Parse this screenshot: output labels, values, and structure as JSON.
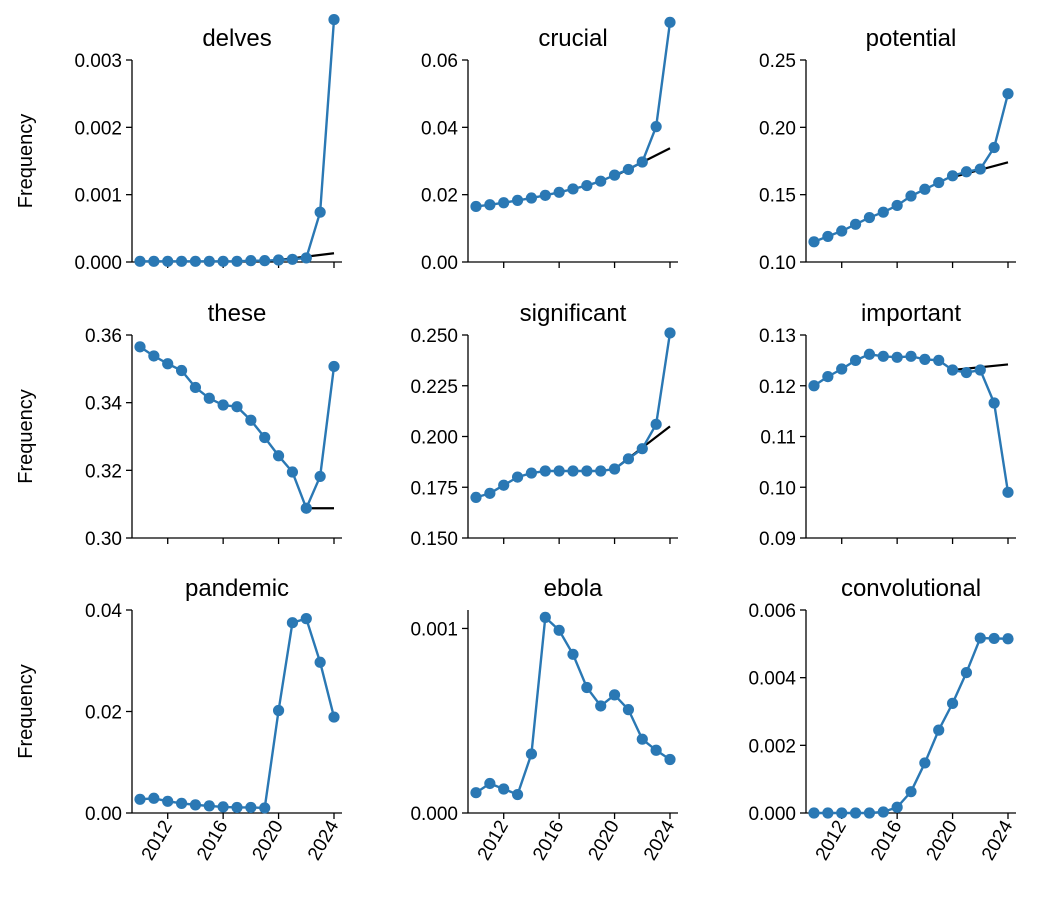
{
  "colors": {
    "series": "#2a78b4",
    "trend": "#000000",
    "axis": "#000000"
  },
  "chart_data": [
    {
      "type": "line",
      "title": "delves",
      "ylabel": "Frequency",
      "ylim": [
        0,
        0.003
      ],
      "yticks": [
        0,
        0.001,
        0.002,
        0.003
      ],
      "ytick_labels": [
        "0.000",
        "0.001",
        "0.002",
        "0.003"
      ],
      "xlim": [
        2010,
        2024
      ],
      "xticks": [
        2012,
        2016,
        2020,
        2024
      ],
      "show_xtick_labels": false,
      "x": [
        2010,
        2011,
        2012,
        2013,
        2014,
        2015,
        2016,
        2017,
        2018,
        2019,
        2020,
        2021,
        2022,
        2023,
        2024
      ],
      "series": [
        {
          "values": [
            1e-05,
            1e-05,
            1e-05,
            1e-05,
            1e-05,
            1e-05,
            1e-05,
            1e-05,
            2e-05,
            2e-05,
            3e-05,
            4e-05,
            6e-05,
            0.00074,
            0.0036
          ]
        }
      ],
      "trend": {
        "x": [
          2020,
          2024
        ],
        "y": [
          3e-05,
          0.00013
        ]
      }
    },
    {
      "type": "line",
      "title": "crucial",
      "ylabel": "",
      "ylim": [
        0,
        0.06
      ],
      "yticks": [
        0,
        0.02,
        0.04,
        0.06
      ],
      "ytick_labels": [
        "0.00",
        "0.02",
        "0.04",
        "0.06"
      ],
      "xlim": [
        2010,
        2024
      ],
      "xticks": [
        2012,
        2016,
        2020,
        2024
      ],
      "show_xtick_labels": false,
      "x": [
        2010,
        2011,
        2012,
        2013,
        2014,
        2015,
        2016,
        2017,
        2018,
        2019,
        2020,
        2021,
        2022,
        2023,
        2024
      ],
      "series": [
        {
          "values": [
            0.0165,
            0.017,
            0.0176,
            0.0183,
            0.019,
            0.0198,
            0.0207,
            0.0217,
            0.0227,
            0.024,
            0.0258,
            0.0275,
            0.0297,
            0.0402,
            0.0712
          ]
        }
      ],
      "trend": {
        "x": [
          2020,
          2024
        ],
        "y": [
          0.0255,
          0.0338
        ]
      }
    },
    {
      "type": "line",
      "title": "potential",
      "ylabel": "",
      "ylim": [
        0.1,
        0.25
      ],
      "yticks": [
        0.1,
        0.15,
        0.2,
        0.25
      ],
      "ytick_labels": [
        "0.10",
        "0.15",
        "0.20",
        "0.25"
      ],
      "xlim": [
        2010,
        2024
      ],
      "xticks": [
        2012,
        2016,
        2020,
        2024
      ],
      "show_xtick_labels": false,
      "x": [
        2010,
        2011,
        2012,
        2013,
        2014,
        2015,
        2016,
        2017,
        2018,
        2019,
        2020,
        2021,
        2022,
        2023,
        2024
      ],
      "series": [
        {
          "values": [
            0.115,
            0.119,
            0.123,
            0.128,
            0.133,
            0.137,
            0.142,
            0.149,
            0.154,
            0.159,
            0.164,
            0.167,
            0.169,
            0.185,
            0.225
          ]
        }
      ],
      "trend": {
        "x": [
          2020,
          2024
        ],
        "y": [
          0.163,
          0.174
        ]
      }
    },
    {
      "type": "line",
      "title": "these",
      "ylabel": "Frequency",
      "ylim": [
        0.3,
        0.36
      ],
      "yticks": [
        0.3,
        0.32,
        0.34,
        0.36
      ],
      "ytick_labels": [
        "0.30",
        "0.32",
        "0.34",
        "0.36"
      ],
      "xlim": [
        2010,
        2024
      ],
      "xticks": [
        2012,
        2016,
        2020,
        2024
      ],
      "show_xtick_labels": false,
      "x": [
        2010,
        2011,
        2012,
        2013,
        2014,
        2015,
        2016,
        2017,
        2018,
        2019,
        2020,
        2021,
        2022,
        2023,
        2024
      ],
      "series": [
        {
          "values": [
            0.3565,
            0.3538,
            0.3515,
            0.3495,
            0.3445,
            0.3413,
            0.3393,
            0.3388,
            0.3348,
            0.3297,
            0.3243,
            0.3195,
            0.3088,
            0.3182,
            0.3507
          ]
        }
      ],
      "trend": {
        "x": [
          2022,
          2024
        ],
        "y": [
          0.3088,
          0.3088
        ]
      }
    },
    {
      "type": "line",
      "title": "significant",
      "ylabel": "",
      "ylim": [
        0.15,
        0.25
      ],
      "yticks": [
        0.15,
        0.175,
        0.2,
        0.225,
        0.25
      ],
      "ytick_labels": [
        "0.150",
        "0.175",
        "0.200",
        "0.225",
        "0.250"
      ],
      "xlim": [
        2010,
        2024
      ],
      "xticks": [
        2012,
        2016,
        2020,
        2024
      ],
      "show_xtick_labels": false,
      "x": [
        2010,
        2011,
        2012,
        2013,
        2014,
        2015,
        2016,
        2017,
        2018,
        2019,
        2020,
        2021,
        2022,
        2023,
        2024
      ],
      "series": [
        {
          "values": [
            0.17,
            0.172,
            0.176,
            0.18,
            0.182,
            0.183,
            0.183,
            0.183,
            0.183,
            0.183,
            0.184,
            0.189,
            0.194,
            0.206,
            0.251
          ]
        }
      ],
      "trend": {
        "x": [
          2020,
          2024
        ],
        "y": [
          0.184,
          0.205
        ]
      }
    },
    {
      "type": "line",
      "title": "important",
      "ylabel": "",
      "ylim": [
        0.09,
        0.13
      ],
      "yticks": [
        0.09,
        0.1,
        0.11,
        0.12,
        0.13
      ],
      "ytick_labels": [
        "0.09",
        "0.10",
        "0.11",
        "0.12",
        "0.13"
      ],
      "xlim": [
        2010,
        2024
      ],
      "xticks": [
        2012,
        2016,
        2020,
        2024
      ],
      "show_xtick_labels": false,
      "x": [
        2010,
        2011,
        2012,
        2013,
        2014,
        2015,
        2016,
        2017,
        2018,
        2019,
        2020,
        2021,
        2022,
        2023,
        2024
      ],
      "series": [
        {
          "values": [
            0.12,
            0.1218,
            0.1233,
            0.125,
            0.1262,
            0.1258,
            0.1256,
            0.1258,
            0.1252,
            0.125,
            0.1231,
            0.1226,
            0.1231,
            0.1166,
            0.099
          ]
        }
      ],
      "trend": {
        "x": [
          2020,
          2024
        ],
        "y": [
          0.1231,
          0.1242
        ]
      }
    },
    {
      "type": "line",
      "title": "pandemic",
      "ylabel": "Frequency",
      "ylim": [
        0,
        0.04
      ],
      "yticks": [
        0,
        0.02,
        0.04
      ],
      "ytick_labels": [
        "0.00",
        "0.02",
        "0.04"
      ],
      "xlim": [
        2010,
        2024
      ],
      "xticks": [
        2012,
        2016,
        2020,
        2024
      ],
      "xtick_labels": [
        "2012",
        "2016",
        "2020",
        "2024"
      ],
      "show_xtick_labels": true,
      "x": [
        2010,
        2011,
        2012,
        2013,
        2014,
        2015,
        2016,
        2017,
        2018,
        2019,
        2020,
        2021,
        2022,
        2023,
        2024
      ],
      "series": [
        {
          "values": [
            0.0027,
            0.0029,
            0.0023,
            0.0019,
            0.0016,
            0.0014,
            0.0012,
            0.0011,
            0.0011,
            0.001,
            0.0202,
            0.0375,
            0.0383,
            0.0297,
            0.0189
          ]
        }
      ]
    },
    {
      "type": "line",
      "title": "ebola",
      "ylabel": "",
      "ylim": [
        0,
        0.0011
      ],
      "yticks": [
        0,
        0.001
      ],
      "ytick_labels": [
        "0.000",
        "0.001"
      ],
      "xlim": [
        2010,
        2024
      ],
      "xticks": [
        2012,
        2016,
        2020,
        2024
      ],
      "xtick_labels": [
        "2012",
        "2016",
        "2020",
        "2024"
      ],
      "show_xtick_labels": true,
      "x": [
        2010,
        2011,
        2012,
        2013,
        2014,
        2015,
        2016,
        2017,
        2018,
        2019,
        2020,
        2021,
        2022,
        2023,
        2024
      ],
      "series": [
        {
          "values": [
            0.00011,
            0.00016,
            0.00013,
            0.0001,
            0.00032,
            0.00106,
            0.00099,
            0.00086,
            0.00068,
            0.00058,
            0.00064,
            0.00056,
            0.0004,
            0.00034,
            0.00029
          ]
        }
      ]
    },
    {
      "type": "line",
      "title": "convolutional",
      "ylabel": "",
      "ylim": [
        0,
        0.006
      ],
      "yticks": [
        0,
        0.002,
        0.004,
        0.006
      ],
      "ytick_labels": [
        "0.000",
        "0.002",
        "0.004",
        "0.006"
      ],
      "xlim": [
        2010,
        2024
      ],
      "xticks": [
        2012,
        2016,
        2020,
        2024
      ],
      "xtick_labels": [
        "2012",
        "2016",
        "2020",
        "2024"
      ],
      "show_xtick_labels": true,
      "x": [
        2010,
        2011,
        2012,
        2013,
        2014,
        2015,
        2016,
        2017,
        2018,
        2019,
        2020,
        2021,
        2022,
        2023,
        2024
      ],
      "series": [
        {
          "values": [
            0,
            0,
            0,
            0,
            0,
            3e-05,
            0.00017,
            0.00063,
            0.00148,
            0.00245,
            0.00324,
            0.00415,
            0.00517,
            0.00516,
            0.00515
          ]
        }
      ]
    }
  ]
}
